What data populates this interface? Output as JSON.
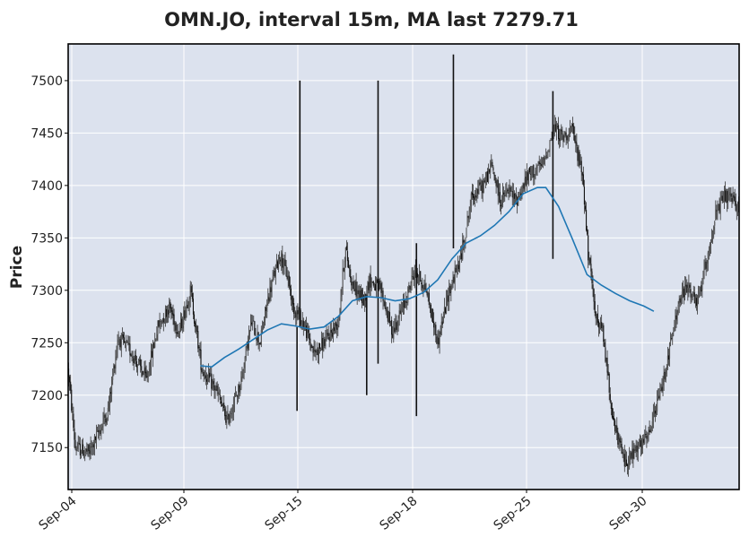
{
  "chart_data": {
    "type": "candlestick",
    "title": "OMN.JO, interval 15m, MA last 7279.71",
    "ylabel": "Price",
    "xlabel": "",
    "ylim": [
      7110,
      7535
    ],
    "yticks": [
      7150,
      7200,
      7250,
      7300,
      7350,
      7400,
      7450,
      7500
    ],
    "xticks": [
      "Sep-04",
      "Sep-09",
      "Sep-15",
      "Sep-18",
      "Sep-25",
      "Sep-30"
    ],
    "grid": true,
    "colors": {
      "background": "#dce2ee",
      "candles": "#222222",
      "ma_line": "#1f77b4",
      "grid": "#ffffff"
    },
    "price_path": [
      [
        0,
        7225
      ],
      [
        0.5,
        7150
      ],
      [
        1.5,
        7145
      ],
      [
        2.8,
        7185
      ],
      [
        3.5,
        7255
      ],
      [
        4.5,
        7240
      ],
      [
        5.5,
        7215
      ],
      [
        6.3,
        7265
      ],
      [
        7.1,
        7285
      ],
      [
        7.8,
        7260
      ],
      [
        8.6,
        7300
      ],
      [
        9.4,
        7225
      ],
      [
        10.4,
        7205
      ],
      [
        11.2,
        7175
      ],
      [
        12.1,
        7210
      ],
      [
        12.9,
        7270
      ],
      [
        13.5,
        7250
      ],
      [
        14.1,
        7295
      ],
      [
        14.9,
        7335
      ],
      [
        15.5,
        7310
      ],
      [
        15.8,
        7285
      ],
      [
        16.5,
        7270
      ],
      [
        17.3,
        7240
      ],
      [
        18,
        7250
      ],
      [
        19,
        7270
      ],
      [
        19.5,
        7340
      ],
      [
        20,
        7305
      ],
      [
        20.8,
        7290
      ],
      [
        21.2,
        7310
      ],
      [
        22,
        7300
      ],
      [
        22.8,
        7260
      ],
      [
        23.6,
        7285
      ],
      [
        24.4,
        7320
      ],
      [
        25.2,
        7300
      ],
      [
        26,
        7250
      ],
      [
        26.8,
        7300
      ],
      [
        27.6,
        7330
      ],
      [
        28.4,
        7390
      ],
      [
        29.2,
        7400
      ],
      [
        29.8,
        7420
      ],
      [
        30.4,
        7385
      ],
      [
        31,
        7395
      ],
      [
        31.5,
        7385
      ],
      [
        32.4,
        7410
      ],
      [
        33.4,
        7420
      ],
      [
        34.2,
        7455
      ],
      [
        34.8,
        7445
      ],
      [
        35.4,
        7455
      ],
      [
        36.2,
        7410
      ],
      [
        36.6,
        7330
      ],
      [
        37.2,
        7270
      ],
      [
        37.6,
        7260
      ],
      [
        38.4,
        7170
      ],
      [
        39.2,
        7135
      ],
      [
        39.8,
        7145
      ],
      [
        40.8,
        7160
      ],
      [
        41.8,
        7210
      ],
      [
        42.4,
        7250
      ],
      [
        43,
        7290
      ],
      [
        43.6,
        7305
      ],
      [
        44.2,
        7285
      ],
      [
        44.8,
        7320
      ],
      [
        45.5,
        7370
      ],
      [
        46.2,
        7390
      ],
      [
        47.2,
        7380
      ]
    ],
    "spikes": [
      {
        "x": 16.3,
        "high": 7500,
        "low": 7265
      },
      {
        "x": 16.1,
        "high": 7265,
        "low": 7185
      },
      {
        "x": 21.0,
        "high": 7295,
        "low": 7200
      },
      {
        "x": 21.8,
        "high": 7500,
        "low": 7230
      },
      {
        "x": 24.5,
        "high": 7345,
        "low": 7180
      },
      {
        "x": 27.1,
        "high": 7525,
        "low": 7340
      },
      {
        "x": 34.1,
        "high": 7490,
        "low": 7330
      }
    ],
    "ma_path": [
      [
        9.3,
        7228
      ],
      [
        10.1,
        7227
      ],
      [
        11,
        7236
      ],
      [
        12,
        7244
      ],
      [
        13,
        7253
      ],
      [
        14,
        7262
      ],
      [
        15,
        7268
      ],
      [
        16,
        7266
      ],
      [
        17,
        7263
      ],
      [
        18,
        7265
      ],
      [
        19,
        7275
      ],
      [
        20,
        7290
      ],
      [
        21,
        7294
      ],
      [
        22,
        7293
      ],
      [
        23,
        7290
      ],
      [
        24,
        7292
      ],
      [
        25,
        7298
      ],
      [
        26,
        7310
      ],
      [
        27,
        7330
      ],
      [
        28,
        7345
      ],
      [
        29,
        7352
      ],
      [
        30,
        7362
      ],
      [
        31,
        7375
      ],
      [
        32,
        7392
      ],
      [
        33,
        7398
      ],
      [
        33.6,
        7398
      ],
      [
        34.5,
        7380
      ],
      [
        35.5,
        7348
      ],
      [
        36.5,
        7315
      ],
      [
        37.5,
        7305
      ],
      [
        38.5,
        7297
      ],
      [
        39.5,
        7290
      ],
      [
        40.5,
        7285
      ],
      [
        41.2,
        7280
      ]
    ],
    "x_range": [
      0,
      47.2
    ]
  }
}
